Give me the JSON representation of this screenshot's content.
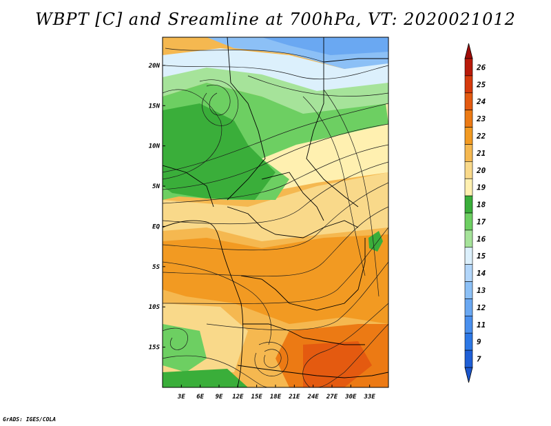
{
  "title": "WBPT [C] and Sreamline at 700hPa, VT: 2020021012",
  "credit": "GrADS: IGES/COLA",
  "map": {
    "lon_range": [
      0,
      36
    ],
    "lat_range": [
      -20,
      23.5
    ],
    "lon_ticks": [
      {
        "value": 3,
        "label": "3E"
      },
      {
        "value": 6,
        "label": "6E"
      },
      {
        "value": 9,
        "label": "9E"
      },
      {
        "value": 12,
        "label": "12E"
      },
      {
        "value": 15,
        "label": "15E"
      },
      {
        "value": 18,
        "label": "18E"
      },
      {
        "value": 21,
        "label": "21E"
      },
      {
        "value": 24,
        "label": "24E"
      },
      {
        "value": 27,
        "label": "27E"
      },
      {
        "value": 30,
        "label": "30E"
      },
      {
        "value": 33,
        "label": "33E"
      }
    ],
    "lat_ticks": [
      {
        "value": 20,
        "label": "20N"
      },
      {
        "value": 15,
        "label": "15N"
      },
      {
        "value": 10,
        "label": "10N"
      },
      {
        "value": 5,
        "label": "5N"
      },
      {
        "value": 0,
        "label": "EQ"
      },
      {
        "value": -5,
        "label": "5S"
      },
      {
        "value": -10,
        "label": "10S"
      },
      {
        "value": -15,
        "label": "15S"
      }
    ]
  },
  "colorbar": {
    "orientation": "vertical",
    "placement": "right",
    "bins": [
      {
        "label": "7",
        "color": "#1f5fd6"
      },
      {
        "label": "9",
        "color": "#2d78e6"
      },
      {
        "label": "11",
        "color": "#4a90ee"
      },
      {
        "label": "12",
        "color": "#6aa8f2"
      },
      {
        "label": "13",
        "color": "#8cc0f6"
      },
      {
        "label": "14",
        "color": "#b2d6fa"
      },
      {
        "label": "15",
        "color": "#dcf0fc"
      },
      {
        "label": "16",
        "color": "#a6e39a"
      },
      {
        "label": "17",
        "color": "#6dcf62"
      },
      {
        "label": "18",
        "color": "#3aae3a"
      },
      {
        "label": "19",
        "color": "#fff0b0"
      },
      {
        "label": "20",
        "color": "#f9d98a"
      },
      {
        "label": "21",
        "color": "#f5b850"
      },
      {
        "label": "22",
        "color": "#f29a22"
      },
      {
        "label": "23",
        "color": "#ec7a14"
      },
      {
        "label": "24",
        "color": "#e45a10"
      },
      {
        "label": "25",
        "color": "#d63a0c"
      },
      {
        "label": "26",
        "color": "#b81a0a"
      }
    ],
    "top_cap_color": "#a00c08",
    "bottom_cap_color": "#1a55cc"
  },
  "colors": {
    "streamline": "#1a1a1a",
    "border": "#000000"
  }
}
